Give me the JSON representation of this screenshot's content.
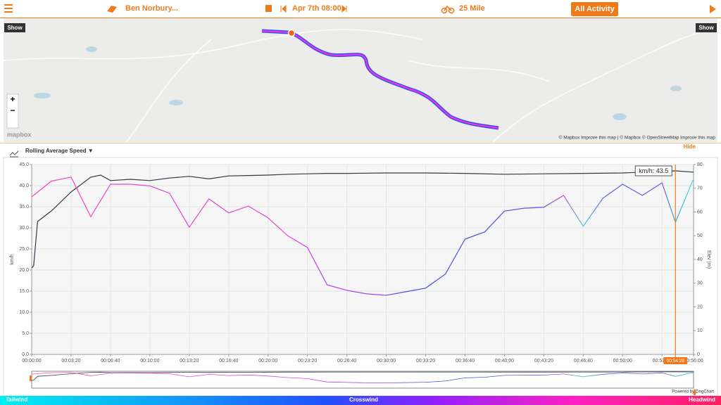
{
  "header": {
    "rider": "Ben Norbury...",
    "date": "Apr 7th 08:00",
    "distance": "25 Mile",
    "activity": "All Activity ▼"
  },
  "map": {
    "show_left": "Show",
    "show_right": "Show",
    "zoom_in": "+",
    "zoom_out": "−",
    "logo": "mapbox",
    "attribution": "© Mapbox Improve this map | © Mapbox © OpenStreetMap Improve this map"
  },
  "panel": {
    "selector": "Rolling Average Speed ▼",
    "hide": "Hide",
    "powered": "Powered by ZingChart"
  },
  "wind_legend": {
    "left": "Tailwind",
    "middle": "Crosswind",
    "right": "Headwind"
  },
  "chart_data": {
    "type": "line",
    "ylabel": "km/h",
    "y2label": "Elev (m)",
    "xlim": [
      0,
      3360
    ],
    "xticks": [
      {
        "value": 0,
        "label": "00:00:00"
      },
      {
        "value": 200,
        "label": "00:03:20"
      },
      {
        "value": 400,
        "label": "00:06:40"
      },
      {
        "value": 600,
        "label": "00:10:00"
      },
      {
        "value": 800,
        "label": "00:13:20"
      },
      {
        "value": 1000,
        "label": "00:16:40"
      },
      {
        "value": 1200,
        "label": "00:20:00"
      },
      {
        "value": 1400,
        "label": "00:23:20"
      },
      {
        "value": 1600,
        "label": "00:26:40"
      },
      {
        "value": 1800,
        "label": "00:30:00"
      },
      {
        "value": 2000,
        "label": "00:33:20"
      },
      {
        "value": 2200,
        "label": "00:36:40"
      },
      {
        "value": 2400,
        "label": "00:40:00"
      },
      {
        "value": 2600,
        "label": "00:43:20"
      },
      {
        "value": 2800,
        "label": "00:46:40"
      },
      {
        "value": 3000,
        "label": "00:50:00"
      },
      {
        "value": 3200,
        "label": "00:53:20"
      },
      {
        "value": 3360,
        "label": "00:56:00"
      }
    ],
    "ylim": [
      0,
      45
    ],
    "yticks": [
      {
        "value": 0,
        "label": "0.0"
      },
      {
        "value": 5,
        "label": "5.0"
      },
      {
        "value": 10,
        "label": "10.0"
      },
      {
        "value": 15,
        "label": "15.0"
      },
      {
        "value": 20,
        "label": "20.0"
      },
      {
        "value": 25,
        "label": "25.0"
      },
      {
        "value": 30,
        "label": "30.0"
      },
      {
        "value": 35,
        "label": "35.0"
      },
      {
        "value": 40,
        "label": "40.0"
      },
      {
        "value": 45,
        "label": "45.0"
      }
    ],
    "y2lim": [
      0,
      80
    ],
    "y2ticks": [
      0,
      10,
      20,
      30,
      40,
      50,
      60,
      70,
      80
    ],
    "grid": true,
    "series": [
      {
        "name": "Rolling Average Speed",
        "color": "#2f3a48",
        "axis": "y",
        "x": [
          0,
          10,
          30,
          100,
          200,
          300,
          350,
          400,
          500,
          600,
          700,
          800,
          900,
          1000,
          1100,
          1200,
          1300,
          1400,
          1500,
          1600,
          1800,
          2000,
          2200,
          2400,
          2600,
          2800,
          3000,
          3100,
          3200,
          3268,
          3360
        ],
        "values": [
          20.5,
          21,
          31.5,
          34,
          38.5,
          42,
          42.5,
          41.2,
          41.5,
          41.2,
          41.8,
          42.2,
          41.6,
          42.3,
          42.4,
          42.5,
          42.7,
          42.8,
          42.9,
          42.9,
          43,
          43,
          42.9,
          42.7,
          42.8,
          42.9,
          43,
          43.2,
          43.4,
          43.5,
          43.2
        ]
      },
      {
        "name": "Elevation",
        "axis": "y2",
        "x": [
          0,
          100,
          200,
          300,
          400,
          500,
          600,
          700,
          800,
          900,
          1000,
          1100,
          1200,
          1300,
          1400,
          1500,
          1600,
          1700,
          1800,
          1900,
          2000,
          2100,
          2200,
          2300,
          2400,
          2500,
          2600,
          2700,
          2800,
          2900,
          3000,
          3100,
          3200,
          3268,
          3360
        ],
        "values": [
          66.4,
          73,
          74.7,
          58,
          71.7,
          71.7,
          71,
          67.9,
          53.6,
          65.5,
          59.6,
          62.5,
          57.5,
          50,
          45,
          29.3,
          27,
          25.5,
          24.9,
          26.4,
          27.9,
          33.8,
          48.6,
          51.6,
          60.4,
          61.6,
          62,
          67,
          54,
          65.8,
          71.7,
          67,
          72.3,
          55.7,
          74
        ],
        "colors": [
          "#ff44bb",
          "#ff44bb",
          "#ff44bb",
          "#ff44bb",
          "#e844d0",
          "#e844d0",
          "#e844d0",
          "#e844d0",
          "#e844d0",
          "#e844d0",
          "#e844d0",
          "#e844d0",
          "#e844d0",
          "#e844d0",
          "#d044e0",
          "#b040e8",
          "#b040e8",
          "#b040e8",
          "#9a48e8",
          "#4a50e0",
          "#4a50e0",
          "#4a50e0",
          "#4a50e0",
          "#4a50e0",
          "#6050e0",
          "#6050e0",
          "#6050e0",
          "#c050d0",
          "#40c8e0",
          "#6060e0",
          "#6060e0",
          "#6060e0",
          "#8050e0",
          "#30b0d0",
          "#40e0f0"
        ]
      }
    ],
    "cursor": {
      "x": 3268,
      "label": "00:54:28",
      "tooltip": "km/h: 43.5"
    }
  }
}
